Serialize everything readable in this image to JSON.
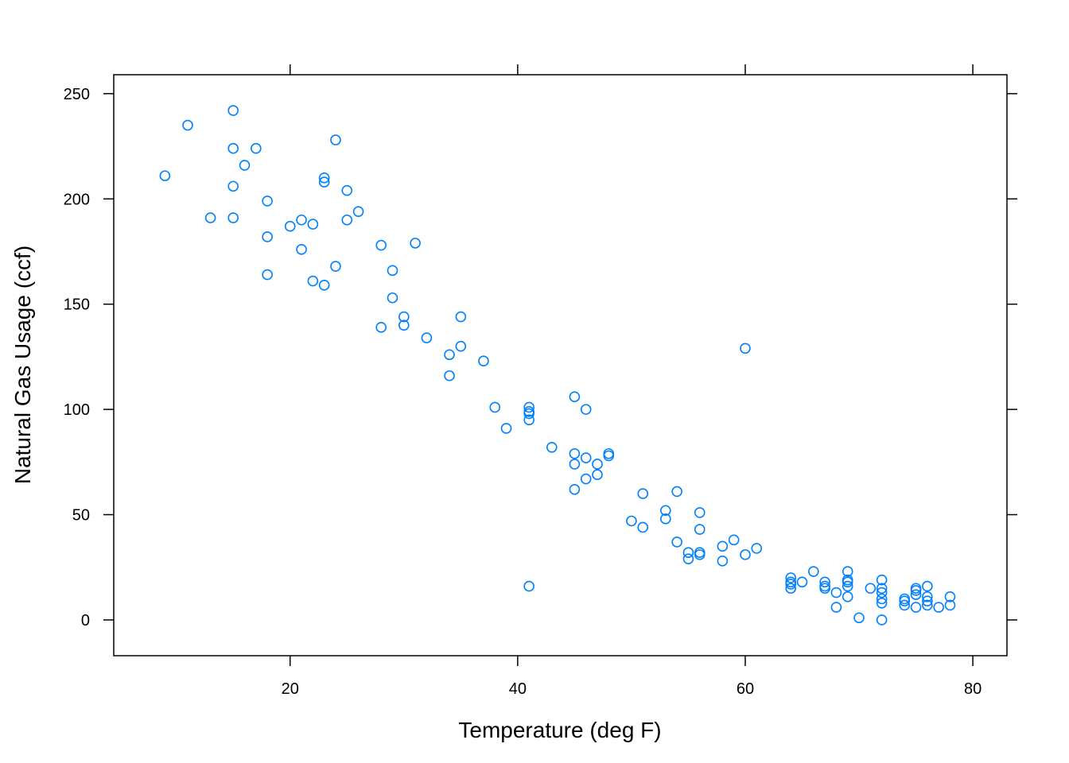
{
  "chart_data": {
    "type": "scatter",
    "title": "",
    "xlabel": "Temperature (deg F)",
    "ylabel": "Natural Gas Usage (ccf)",
    "xlim": [
      4.5,
      83
    ],
    "ylim": [
      -17,
      259
    ],
    "x_ticks": [
      20,
      40,
      60,
      80
    ],
    "y_ticks": [
      0,
      50,
      100,
      150,
      200,
      250
    ],
    "grid": false,
    "legend": "none",
    "point_color": "#0080ff",
    "points": [
      {
        "x": 9,
        "y": 211
      },
      {
        "x": 11,
        "y": 235
      },
      {
        "x": 13,
        "y": 191
      },
      {
        "x": 15,
        "y": 242
      },
      {
        "x": 15,
        "y": 224
      },
      {
        "x": 15,
        "y": 206
      },
      {
        "x": 15,
        "y": 191
      },
      {
        "x": 16,
        "y": 216
      },
      {
        "x": 17,
        "y": 224
      },
      {
        "x": 18,
        "y": 199
      },
      {
        "x": 18,
        "y": 182
      },
      {
        "x": 18,
        "y": 164
      },
      {
        "x": 20,
        "y": 187
      },
      {
        "x": 21,
        "y": 190
      },
      {
        "x": 21,
        "y": 176
      },
      {
        "x": 22,
        "y": 188
      },
      {
        "x": 22,
        "y": 161
      },
      {
        "x": 23,
        "y": 210
      },
      {
        "x": 23,
        "y": 208
      },
      {
        "x": 23,
        "y": 159
      },
      {
        "x": 24,
        "y": 228
      },
      {
        "x": 24,
        "y": 168
      },
      {
        "x": 25,
        "y": 204
      },
      {
        "x": 25,
        "y": 190
      },
      {
        "x": 26,
        "y": 194
      },
      {
        "x": 28,
        "y": 178
      },
      {
        "x": 28,
        "y": 139
      },
      {
        "x": 29,
        "y": 166
      },
      {
        "x": 29,
        "y": 153
      },
      {
        "x": 30,
        "y": 144
      },
      {
        "x": 30,
        "y": 140
      },
      {
        "x": 31,
        "y": 179
      },
      {
        "x": 32,
        "y": 134
      },
      {
        "x": 34,
        "y": 126
      },
      {
        "x": 34,
        "y": 116
      },
      {
        "x": 35,
        "y": 144
      },
      {
        "x": 35,
        "y": 130
      },
      {
        "x": 37,
        "y": 123
      },
      {
        "x": 38,
        "y": 101
      },
      {
        "x": 39,
        "y": 91
      },
      {
        "x": 41,
        "y": 101
      },
      {
        "x": 41,
        "y": 99
      },
      {
        "x": 41,
        "y": 98
      },
      {
        "x": 41,
        "y": 95
      },
      {
        "x": 41,
        "y": 16
      },
      {
        "x": 43,
        "y": 82
      },
      {
        "x": 45,
        "y": 106
      },
      {
        "x": 45,
        "y": 79
      },
      {
        "x": 45,
        "y": 74
      },
      {
        "x": 45,
        "y": 62
      },
      {
        "x": 46,
        "y": 100
      },
      {
        "x": 46,
        "y": 77
      },
      {
        "x": 46,
        "y": 67
      },
      {
        "x": 47,
        "y": 74
      },
      {
        "x": 47,
        "y": 69
      },
      {
        "x": 48,
        "y": 79
      },
      {
        "x": 48,
        "y": 78
      },
      {
        "x": 50,
        "y": 47
      },
      {
        "x": 51,
        "y": 60
      },
      {
        "x": 51,
        "y": 44
      },
      {
        "x": 53,
        "y": 52
      },
      {
        "x": 53,
        "y": 48
      },
      {
        "x": 54,
        "y": 61
      },
      {
        "x": 54,
        "y": 37
      },
      {
        "x": 55,
        "y": 32
      },
      {
        "x": 55,
        "y": 29
      },
      {
        "x": 56,
        "y": 51
      },
      {
        "x": 56,
        "y": 43
      },
      {
        "x": 56,
        "y": 32
      },
      {
        "x": 56,
        "y": 31
      },
      {
        "x": 58,
        "y": 35
      },
      {
        "x": 58,
        "y": 28
      },
      {
        "x": 59,
        "y": 38
      },
      {
        "x": 60,
        "y": 129
      },
      {
        "x": 60,
        "y": 31
      },
      {
        "x": 61,
        "y": 34
      },
      {
        "x": 64,
        "y": 20
      },
      {
        "x": 64,
        "y": 18
      },
      {
        "x": 64,
        "y": 17
      },
      {
        "x": 64,
        "y": 15
      },
      {
        "x": 65,
        "y": 18
      },
      {
        "x": 66,
        "y": 23
      },
      {
        "x": 67,
        "y": 18
      },
      {
        "x": 67,
        "y": 16
      },
      {
        "x": 67,
        "y": 15
      },
      {
        "x": 68,
        "y": 13
      },
      {
        "x": 68,
        "y": 6
      },
      {
        "x": 69,
        "y": 23
      },
      {
        "x": 69,
        "y": 19
      },
      {
        "x": 69,
        "y": 18
      },
      {
        "x": 69,
        "y": 16
      },
      {
        "x": 69,
        "y": 11
      },
      {
        "x": 70,
        "y": 1
      },
      {
        "x": 71,
        "y": 15
      },
      {
        "x": 72,
        "y": 19
      },
      {
        "x": 72,
        "y": 15
      },
      {
        "x": 72,
        "y": 13
      },
      {
        "x": 72,
        "y": 10
      },
      {
        "x": 72,
        "y": 8
      },
      {
        "x": 72,
        "y": 0
      },
      {
        "x": 74,
        "y": 10
      },
      {
        "x": 74,
        "y": 9
      },
      {
        "x": 74,
        "y": 7
      },
      {
        "x": 75,
        "y": 15
      },
      {
        "x": 75,
        "y": 14
      },
      {
        "x": 75,
        "y": 12
      },
      {
        "x": 75,
        "y": 6
      },
      {
        "x": 76,
        "y": 16
      },
      {
        "x": 76,
        "y": 11
      },
      {
        "x": 76,
        "y": 9
      },
      {
        "x": 76,
        "y": 7
      },
      {
        "x": 77,
        "y": 6
      },
      {
        "x": 78,
        "y": 11
      },
      {
        "x": 78,
        "y": 7
      }
    ]
  }
}
